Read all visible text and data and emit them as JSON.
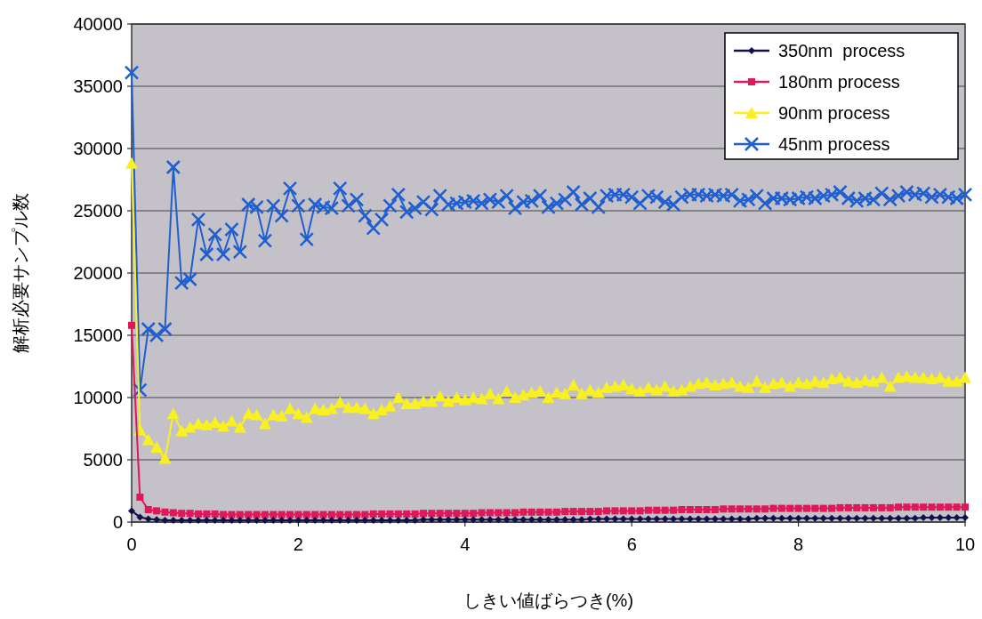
{
  "chart_data": {
    "type": "line",
    "xlabel": "しきい値ばらつき(%)",
    "ylabel": "解析必要サンプル数",
    "x": [
      0,
      0.1,
      0.2,
      0.3,
      0.4,
      0.5,
      0.6,
      0.7,
      0.8,
      0.9,
      1,
      1.1,
      1.2,
      1.3,
      1.4,
      1.5,
      1.6,
      1.7,
      1.8,
      1.9,
      2,
      2.1,
      2.2,
      2.3,
      2.4,
      2.5,
      2.6,
      2.7,
      2.8,
      2.9,
      3,
      3.1,
      3.2,
      3.3,
      3.4,
      3.5,
      3.6,
      3.7,
      3.8,
      3.9,
      4,
      4.1,
      4.2,
      4.3,
      4.4,
      4.5,
      4.6,
      4.7,
      4.8,
      4.9,
      5,
      5.1,
      5.2,
      5.3,
      5.4,
      5.5,
      5.6,
      5.7,
      5.8,
      5.9,
      6,
      6.1,
      6.2,
      6.3,
      6.4,
      6.5,
      6.6,
      6.7,
      6.8,
      6.9,
      7,
      7.1,
      7.2,
      7.3,
      7.4,
      7.5,
      7.6,
      7.7,
      7.8,
      7.9,
      8,
      8.1,
      8.2,
      8.3,
      8.4,
      8.5,
      8.6,
      8.7,
      8.8,
      8.9,
      9,
      9.1,
      9.2,
      9.3,
      9.4,
      9.5,
      9.6,
      9.7,
      9.8,
      9.9,
      10
    ],
    "series": [
      {
        "name": "350nm  process",
        "color": "#10104a",
        "marker": "diamond",
        "values": [
          900,
          400,
          250,
          200,
          150,
          150,
          150,
          150,
          150,
          150,
          150,
          150,
          150,
          150,
          150,
          150,
          150,
          150,
          150,
          150,
          150,
          150,
          150,
          150,
          150,
          150,
          150,
          150,
          150,
          150,
          150,
          150,
          150,
          150,
          150,
          200,
          200,
          200,
          200,
          200,
          200,
          200,
          200,
          200,
          200,
          200,
          200,
          200,
          200,
          200,
          200,
          200,
          200,
          200,
          200,
          250,
          250,
          250,
          250,
          250,
          250,
          250,
          250,
          250,
          250,
          250,
          250,
          250,
          250,
          250,
          250,
          250,
          250,
          250,
          250,
          300,
          300,
          300,
          300,
          300,
          300,
          300,
          300,
          300,
          300,
          300,
          300,
          300,
          300,
          300,
          300,
          300,
          300,
          300,
          300,
          350,
          350,
          350,
          350,
          350,
          350
        ]
      },
      {
        "name": "180nm process",
        "color": "#e0185a",
        "marker": "square",
        "values": [
          15800,
          2000,
          1000,
          900,
          800,
          750,
          700,
          700,
          650,
          650,
          650,
          600,
          600,
          600,
          600,
          600,
          600,
          600,
          600,
          600,
          600,
          600,
          600,
          600,
          600,
          600,
          600,
          600,
          600,
          650,
          650,
          650,
          650,
          650,
          650,
          700,
          700,
          700,
          700,
          700,
          700,
          700,
          750,
          750,
          750,
          750,
          750,
          800,
          800,
          800,
          800,
          800,
          850,
          850,
          850,
          850,
          850,
          900,
          900,
          900,
          900,
          900,
          950,
          950,
          950,
          950,
          1000,
          1000,
          1000,
          1000,
          1000,
          1050,
          1050,
          1050,
          1050,
          1050,
          1050,
          1100,
          1100,
          1100,
          1100,
          1100,
          1100,
          1100,
          1100,
          1150,
          1150,
          1150,
          1150,
          1150,
          1150,
          1150,
          1200,
          1200,
          1200,
          1200,
          1200,
          1200,
          1200,
          1200,
          1200
        ]
      },
      {
        "name": "90nm process",
        "color": "#f8f020",
        "marker": "triangle",
        "values": [
          28800,
          7400,
          6600,
          6000,
          5100,
          8700,
          7300,
          7600,
          7900,
          7800,
          8000,
          7700,
          8100,
          7600,
          8700,
          8600,
          7900,
          8600,
          8500,
          9100,
          8700,
          8400,
          9100,
          9000,
          9100,
          9600,
          9200,
          9200,
          9100,
          8700,
          9000,
          9300,
          10000,
          9500,
          9500,
          9700,
          9700,
          10100,
          9700,
          10000,
          9800,
          10000,
          9900,
          10300,
          9900,
          10500,
          10000,
          10200,
          10400,
          10500,
          10000,
          10400,
          10300,
          11000,
          10300,
          10600,
          10400,
          10800,
          10900,
          11000,
          10700,
          10500,
          10800,
          10600,
          10900,
          10500,
          10600,
          10900,
          11100,
          11200,
          11000,
          11100,
          11200,
          10900,
          10800,
          11300,
          10800,
          11100,
          11200,
          10900,
          11200,
          11100,
          11300,
          11200,
          11500,
          11600,
          11300,
          11200,
          11400,
          11300,
          11600,
          10900,
          11600,
          11700,
          11600,
          11600,
          11500,
          11600,
          11300,
          11300,
          11600
        ]
      },
      {
        "name": "45nm process",
        "color": "#1f5fd0",
        "marker": "cross",
        "values": [
          36100,
          10600,
          15500,
          15000,
          15500,
          28500,
          19200,
          19500,
          24300,
          21500,
          23100,
          21500,
          23500,
          21700,
          25500,
          25300,
          22600,
          25400,
          24600,
          26800,
          25400,
          22700,
          25500,
          25300,
          25200,
          26800,
          25400,
          25900,
          24600,
          23600,
          24300,
          25400,
          26300,
          24900,
          25200,
          25700,
          25100,
          26200,
          25500,
          25600,
          25700,
          25800,
          25600,
          25900,
          25700,
          26200,
          25200,
          25700,
          25800,
          26200,
          25300,
          25600,
          25900,
          26500,
          25500,
          26000,
          25300,
          26200,
          26300,
          26300,
          26100,
          25600,
          26200,
          26100,
          25700,
          25500,
          26100,
          26300,
          26300,
          26200,
          26300,
          26200,
          26300,
          25800,
          25900,
          26200,
          25600,
          26000,
          26000,
          25900,
          26000,
          26100,
          26000,
          26200,
          26300,
          26500,
          26000,
          25800,
          26000,
          25900,
          26400,
          25900,
          26200,
          26500,
          26300,
          26400,
          26100,
          26300,
          26100,
          26000,
          26300
        ]
      }
    ],
    "xlim": [
      0,
      10
    ],
    "xticks": [
      0,
      2,
      4,
      6,
      8,
      10
    ],
    "ylim": [
      0,
      40000
    ],
    "yticks": [
      0,
      5000,
      10000,
      15000,
      20000,
      25000,
      30000,
      35000,
      40000
    ],
    "grid": "y",
    "legend": "top right",
    "line_style": "solid"
  }
}
